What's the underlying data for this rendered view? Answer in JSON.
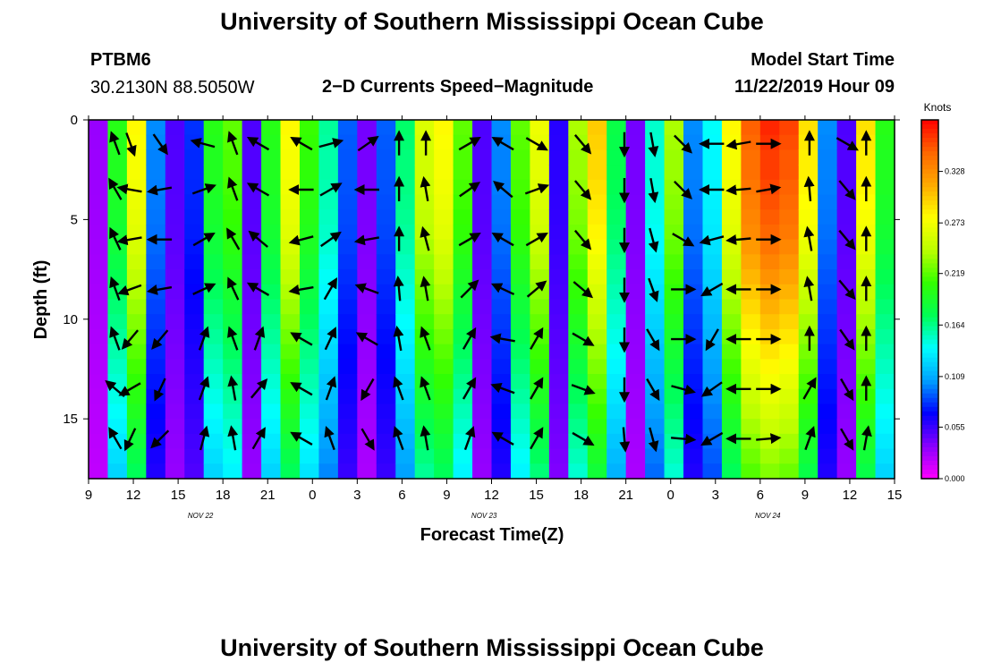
{
  "header": {
    "title_top": "University of Southern Mississippi Ocean Cube",
    "title_bottom": "University of Southern Mississippi Ocean Cube",
    "station": "PTBM6",
    "location": "30.2130N 88.5050W",
    "subtitle": "2−D Currents Speed−Magnitude",
    "model_label": "Model Start Time",
    "model_time": "11/22/2019 Hour 09"
  },
  "colors": {
    "scale": [
      "#ff00ff",
      "#8800ff",
      "#0000ff",
      "#00a0ff",
      "#00ffff",
      "#00ff55",
      "#33ff00",
      "#bbff00",
      "#ffff00",
      "#ffaa00",
      "#ff6600",
      "#ff0000"
    ]
  },
  "chart_data": {
    "type": "heatmap",
    "title": "2−D Currents Speed−Magnitude",
    "xlabel": "Forecast Time(Z)",
    "ylabel": "Depth (ft)",
    "x_ticks": [
      "9",
      "12",
      "15",
      "18",
      "21",
      "0",
      "3",
      "6",
      "9",
      "12",
      "15",
      "18",
      "21",
      "0",
      "3",
      "6",
      "9",
      "12",
      "15"
    ],
    "x_start_hour": 9,
    "x_range_hours": [
      0,
      54
    ],
    "date_labels": [
      {
        "text": "NOV  22",
        "hours_from_start": 7.5
      },
      {
        "text": "NOV  23",
        "hours_from_start": 26.5
      },
      {
        "text": "NOV  24",
        "hours_from_start": 45.5
      }
    ],
    "y_ticks": [
      0,
      5,
      10,
      15
    ],
    "ylim": [
      0,
      18
    ],
    "y_inverted": true,
    "colorbar": {
      "unit": "Knots",
      "ticks": [
        "0.000",
        "0.055",
        "0.109",
        "0.164",
        "0.219",
        "0.273",
        "0.328"
      ],
      "range": [
        0,
        0.383
      ]
    },
    "column_speeds": [
      0.03,
      0.2,
      0.28,
      0.1,
      0.05,
      0.08,
      0.2,
      0.22,
      0.05,
      0.2,
      0.28,
      0.21,
      0.16,
      0.09,
      0.04,
      0.09,
      0.17,
      0.26,
      0.28,
      0.22,
      0.05,
      0.1,
      0.22,
      0.27,
      0.06,
      0.24,
      0.3,
      0.18,
      0.04,
      0.15,
      0.24,
      0.1,
      0.14,
      0.28,
      0.35,
      0.37,
      0.36,
      0.29,
      0.1,
      0.05,
      0.29,
      0.2
    ],
    "depth_factors": [
      1.0,
      0.99,
      0.98,
      0.98,
      0.97,
      0.96,
      0.95,
      0.94,
      0.92,
      0.9,
      0.88,
      0.86,
      0.84,
      0.82,
      0.8,
      0.78,
      0.76,
      0.74,
      0.72,
      0.7,
      0.68,
      0.66,
      0.64,
      0.62
    ],
    "vector_times": [
      1.8,
      2.8,
      4.8,
      7.7,
      9.7,
      11.4,
      14.3,
      16.2,
      18.7,
      20.8,
      22.6,
      25.5,
      27.8,
      30.0,
      33.1,
      35.9,
      37.8,
      39.8,
      41.8,
      43.6,
      45.5,
      48.3,
      50.8,
      52.1
    ],
    "vector_depths": [
      1.2,
      3.5,
      6.0,
      8.5,
      11.0,
      13.5,
      16.0
    ],
    "vector_directions_deg": [
      [
        340,
        160,
        145,
        285,
        340,
        300,
        300,
        75,
        55,
        0,
        0,
        60,
        300,
        120,
        140,
        180,
        170,
        135,
        270,
        260,
        90,
        0,
        120,
        0
      ],
      [
        330,
        280,
        260,
        70,
        340,
        300,
        270,
        60,
        270,
        0,
        350,
        55,
        310,
        70,
        140,
        180,
        170,
        135,
        270,
        265,
        80,
        355,
        140,
        0
      ],
      [
        335,
        260,
        270,
        60,
        330,
        310,
        255,
        55,
        260,
        0,
        345,
        60,
        300,
        60,
        140,
        180,
        165,
        120,
        255,
        265,
        90,
        350,
        140,
        0
      ],
      [
        340,
        250,
        260,
        65,
        335,
        300,
        260,
        30,
        290,
        355,
        350,
        45,
        295,
        50,
        130,
        180,
        160,
        90,
        240,
        270,
        90,
        350,
        140,
        0
      ],
      [
        340,
        220,
        220,
        20,
        340,
        20,
        300,
        25,
        300,
        350,
        340,
        30,
        280,
        30,
        120,
        180,
        150,
        90,
        210,
        270,
        90,
        0,
        145,
        0
      ],
      [
        310,
        240,
        205,
        20,
        350,
        40,
        300,
        20,
        210,
        340,
        340,
        30,
        290,
        30,
        110,
        180,
        150,
        105,
        235,
        270,
        90,
        30,
        150,
        0
      ],
      [
        330,
        205,
        225,
        15,
        350,
        30,
        300,
        340,
        150,
        340,
        350,
        20,
        300,
        30,
        120,
        175,
        165,
        95,
        240,
        270,
        85,
        20,
        150,
        10
      ]
    ]
  }
}
